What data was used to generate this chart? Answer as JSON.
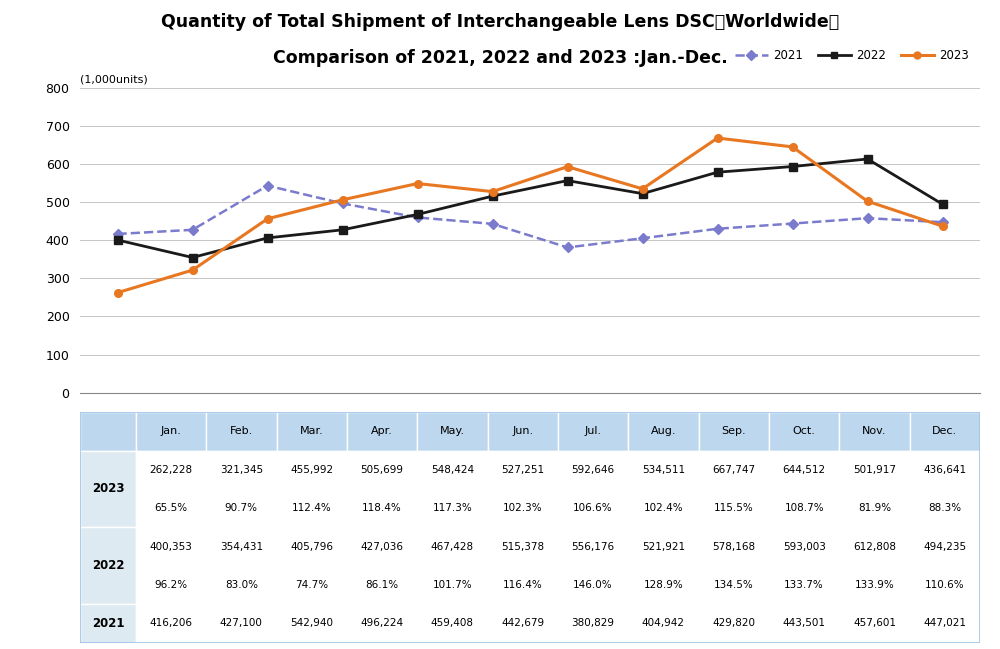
{
  "title_line1": "Quantity of Total Shipment of Interchangeable Lens DSC【Worldwide】",
  "title_line2": "Comparison of 2021, 2022 and 2023 :Jan.-Dec.",
  "ylabel_note": "(1,000units)",
  "months": [
    "Jan.",
    "Feb.",
    "Mar.",
    "Apr.",
    "May.",
    "Jun.",
    "Jul.",
    "Aug.",
    "Sep.",
    "Oct.",
    "Nov.",
    "Dec."
  ],
  "data_2021": [
    416206,
    427100,
    542940,
    496224,
    459408,
    442679,
    380829,
    404942,
    429820,
    443501,
    457601,
    447021
  ],
  "data_2022": [
    400353,
    354431,
    405796,
    427036,
    467428,
    515378,
    556176,
    521921,
    578168,
    593003,
    612808,
    494235
  ],
  "data_2023": [
    262228,
    321345,
    455992,
    505699,
    548424,
    527251,
    592646,
    534511,
    667747,
    644512,
    501917,
    436641
  ],
  "pct_2023": [
    "65.5%",
    "90.7%",
    "112.4%",
    "118.4%",
    "117.3%",
    "102.3%",
    "106.6%",
    "102.4%",
    "115.5%",
    "108.7%",
    "81.9%",
    "88.3%"
  ],
  "pct_2022": [
    "96.2%",
    "83.0%",
    "74.7%",
    "86.1%",
    "101.7%",
    "116.4%",
    "146.0%",
    "128.9%",
    "134.5%",
    "133.7%",
    "133.9%",
    "110.6%"
  ],
  "color_2021": "#7B7BCE",
  "color_2022": "#1A1A1A",
  "color_2023": "#E87722",
  "ylim": [
    0,
    800
  ],
  "yticks": [
    0,
    100,
    200,
    300,
    400,
    500,
    600,
    700,
    800
  ],
  "background_color": "#FFFFFF",
  "table_header_color": "#BDD7EE",
  "table_row_color": "#DEEAF1",
  "table_white_color": "#FFFFFF",
  "scale_factor": 1000
}
